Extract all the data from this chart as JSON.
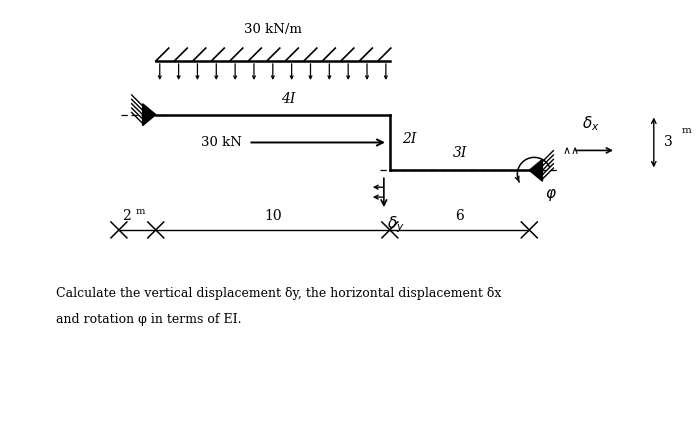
{
  "bg_color": "#ffffff",
  "fig_width": 7.0,
  "fig_height": 4.32,
  "load_label": "30 kN/m",
  "force_label": "30 kN",
  "label_4I": "4I",
  "label_2I": "2I",
  "label_3I": "3I",
  "dim_2": "2",
  "dim_10": "10",
  "dim_6": "6",
  "dim_3": "3",
  "bottom_line1": "Calculate the vertical displacement δy, the horizontal displacement δx",
  "bottom_line2": "and rotation φ in terms of EI."
}
